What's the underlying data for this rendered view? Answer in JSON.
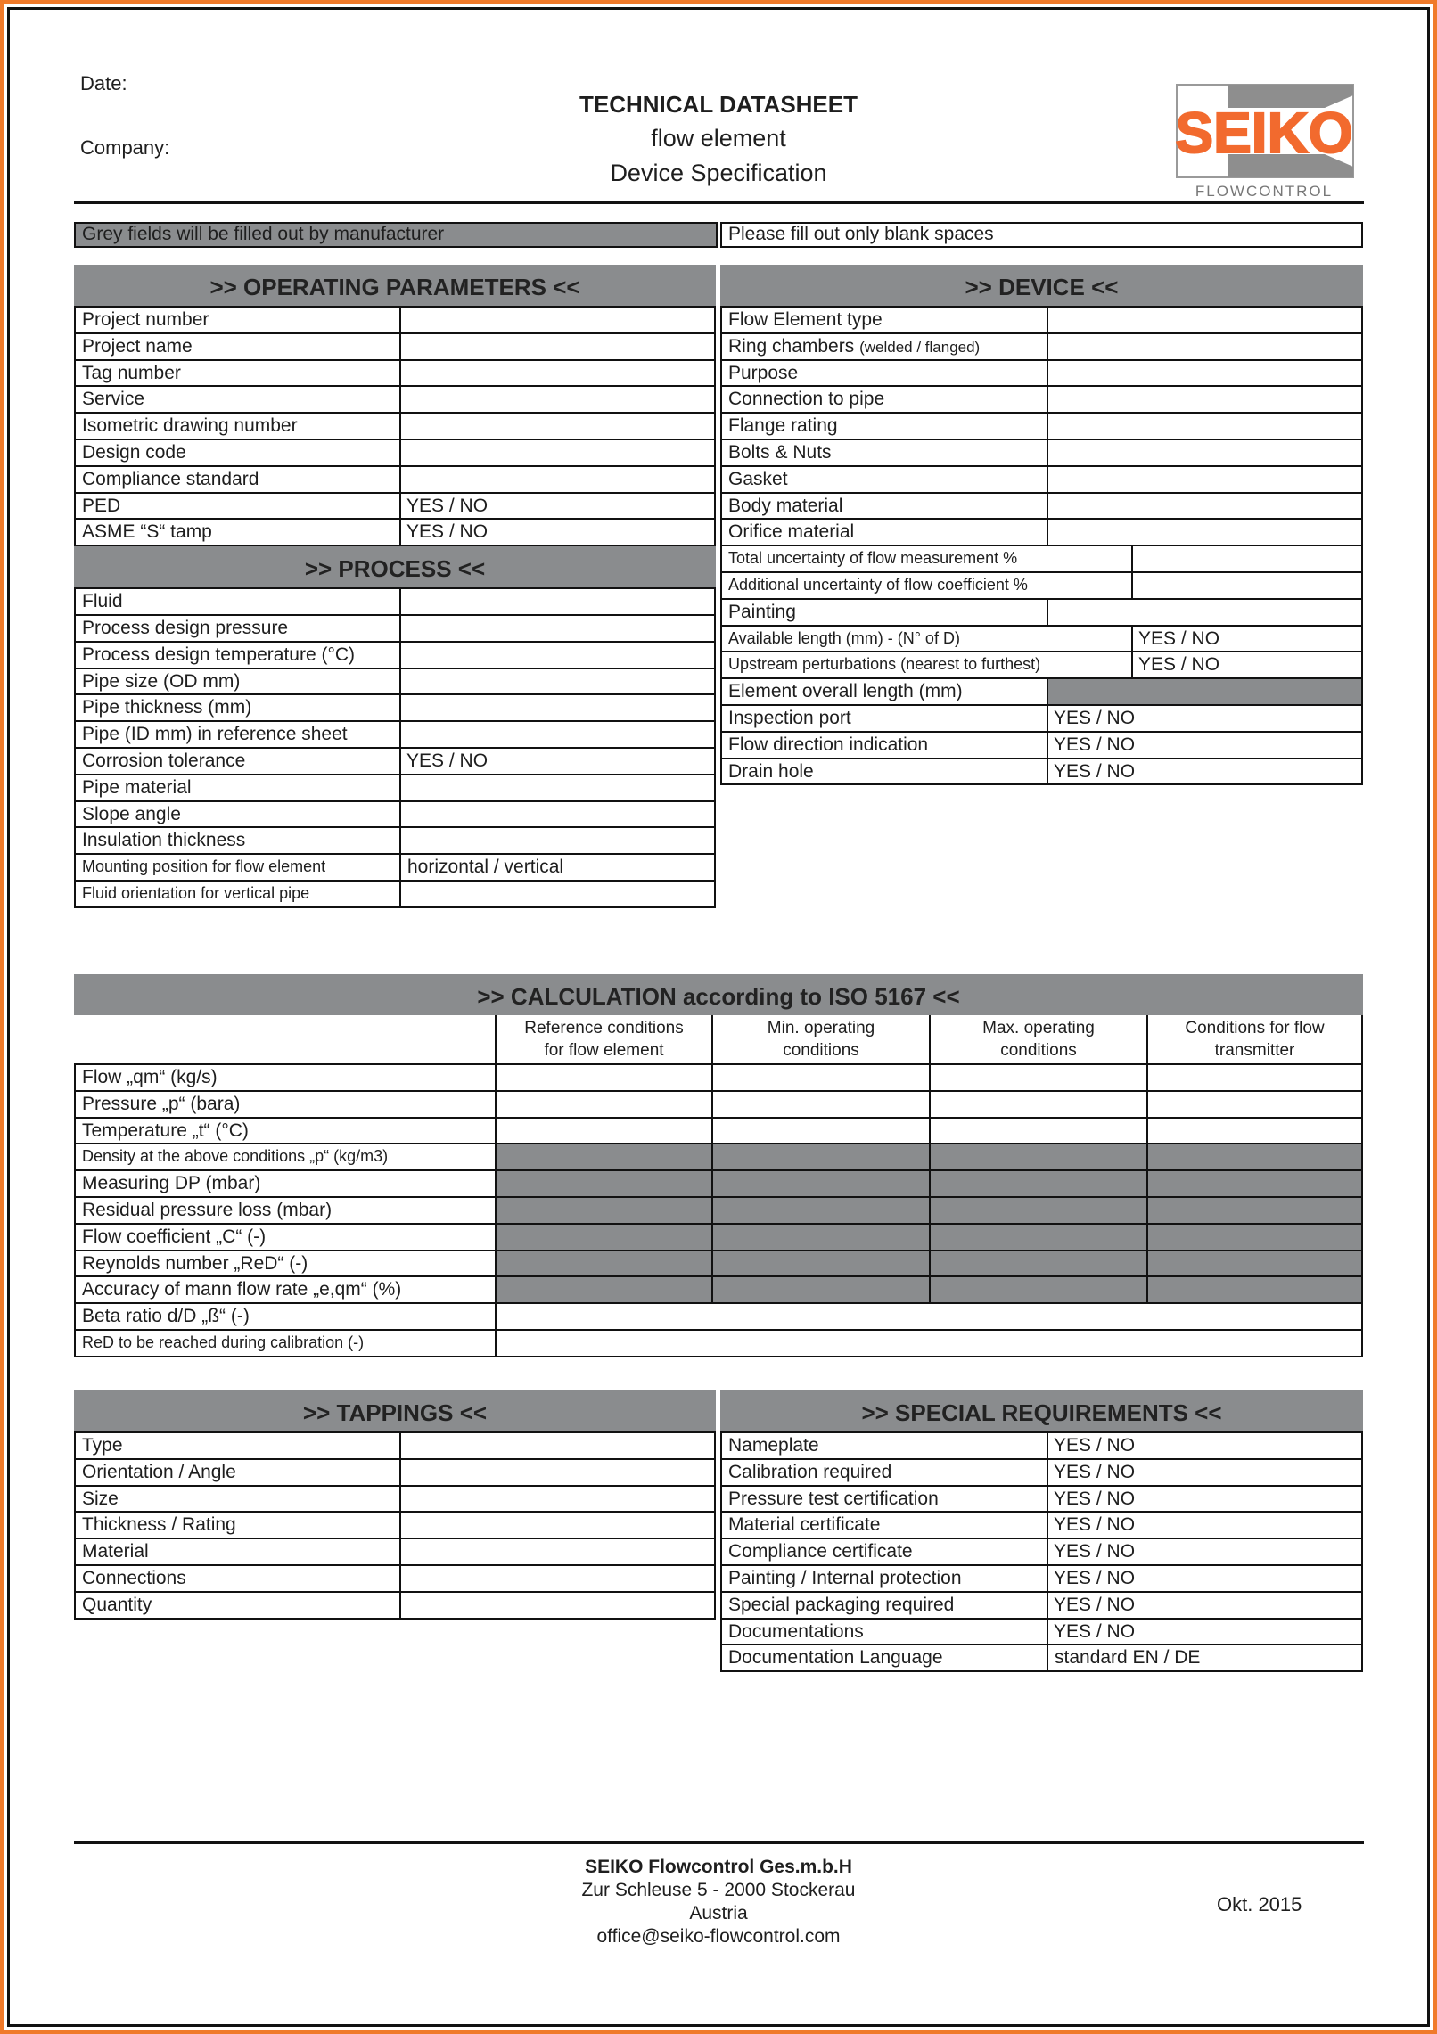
{
  "header": {
    "date_label": "Date:",
    "company_label": "Company:",
    "title": "TECHNICAL DATASHEET",
    "subtitle1": "flow element",
    "subtitle2": "Device Specification",
    "logo_text": "SEIKO",
    "logo_subtext": "FLOWCONTROL"
  },
  "colors": {
    "brand_orange": "#f26a2e",
    "grey_field": "#8a8c8e",
    "border_orange": "#f07a2a"
  },
  "notes": {
    "grey_note": "Grey fields will be filled out by manufacturer",
    "blank_note": "Please fill out only blank spaces"
  },
  "operating": {
    "title": ">> OPERATING PARAMETERS <<",
    "rows": [
      {
        "label": "Project number",
        "value": ""
      },
      {
        "label": "Project name",
        "value": ""
      },
      {
        "label": "Tag number",
        "value": ""
      },
      {
        "label": "Service",
        "value": ""
      },
      {
        "label": "Isometric drawing number",
        "value": ""
      },
      {
        "label": "Design code",
        "value": ""
      },
      {
        "label": "Compliance standard",
        "value": ""
      },
      {
        "label": "PED",
        "value": "YES / NO"
      },
      {
        "label": "ASME “S“ tamp",
        "value": "YES / NO"
      }
    ]
  },
  "process": {
    "title": ">> PROCESS <<",
    "rows": [
      {
        "label": "Fluid",
        "value": ""
      },
      {
        "label": "Process design pressure",
        "value": ""
      },
      {
        "label": "Process design temperature (°C)",
        "value": ""
      },
      {
        "label": "Pipe size (OD mm)",
        "value": ""
      },
      {
        "label": "Pipe thickness (mm)",
        "value": ""
      },
      {
        "label": "Pipe (ID mm) in reference sheet",
        "value": ""
      },
      {
        "label": "Corrosion tolerance",
        "value": "YES / NO"
      },
      {
        "label": "Pipe material",
        "value": ""
      },
      {
        "label": "Slope angle",
        "value": ""
      },
      {
        "label": "Insulation thickness",
        "value": ""
      },
      {
        "label": "Mounting position for flow element",
        "value": "horizontal / vertical"
      },
      {
        "label": "Fluid orientation for vertical pipe",
        "value": ""
      }
    ]
  },
  "device": {
    "title": ">> DEVICE <<",
    "rows": [
      {
        "label": "Flow Element type",
        "sub": "",
        "value": ""
      },
      {
        "label": "Ring chambers",
        "sub": "(welded / flanged)",
        "value": ""
      },
      {
        "label": "Purpose",
        "sub": "",
        "value": ""
      },
      {
        "label": "Connection to pipe",
        "sub": "",
        "value": ""
      },
      {
        "label": "Flange rating",
        "sub": "",
        "value": ""
      },
      {
        "label": "Bolts & Nuts",
        "sub": "",
        "value": ""
      },
      {
        "label": "Gasket",
        "sub": "",
        "value": ""
      },
      {
        "label": "Body material",
        "sub": "",
        "value": ""
      },
      {
        "label": "Orifice material",
        "sub": "",
        "value": ""
      },
      {
        "label": "Total uncertainty of flow measurement %",
        "sub": "",
        "value": ""
      },
      {
        "label": "Additional uncertainty of flow coefficient %",
        "sub": "",
        "value": ""
      },
      {
        "label": "Painting",
        "sub": "",
        "value": ""
      },
      {
        "label": "Available length (mm) - (N° of D)",
        "sub": "",
        "value": "YES / NO"
      },
      {
        "label": "Upstream perturbations (nearest to furthest)",
        "sub": "",
        "value": "YES / NO"
      },
      {
        "label": "Element overall length (mm)",
        "sub": "",
        "value": "",
        "grey": true
      },
      {
        "label": "Inspection port",
        "sub": "",
        "value": "YES / NO"
      },
      {
        "label": "Flow direction indication",
        "sub": "",
        "value": "YES / NO"
      },
      {
        "label": "Drain hole",
        "sub": "",
        "value": "YES / NO"
      }
    ]
  },
  "calculation": {
    "title": ">> CALCULATION according to ISO 5167 <<",
    "columns": [
      "Reference conditions for flow element",
      "Min. operating conditions",
      "Max. operating conditions",
      "Conditions for flow transmitter"
    ],
    "rows": [
      {
        "label": "Flow „qm“ (kg/s)",
        "grey": false,
        "merged": false
      },
      {
        "label": "Pressure „p“ (bara)",
        "grey": false,
        "merged": false
      },
      {
        "label": "Temperature „t“ (°C)",
        "grey": false,
        "merged": false
      },
      {
        "label": "Density at the above conditions „p“ (kg/m3)",
        "grey": true,
        "merged": false
      },
      {
        "label": "Measuring DP (mbar)",
        "grey": true,
        "merged": false
      },
      {
        "label": "Residual pressure loss (mbar)",
        "grey": true,
        "merged": false
      },
      {
        "label": "Flow coefficient „C“ (-)",
        "grey": true,
        "merged": false
      },
      {
        "label": "Reynolds number „ReD“ (-)",
        "grey": true,
        "merged": false
      },
      {
        "label": "Accuracy of mann flow rate „e,qm“ (%)",
        "grey": true,
        "merged": false
      },
      {
        "label": "Beta ratio d/D „ß“ (-)",
        "grey": false,
        "merged": true
      },
      {
        "label": "ReD to be reached during calibration (-)",
        "grey": false,
        "merged": true
      }
    ]
  },
  "tappings": {
    "title": ">> TAPPINGS <<",
    "rows": [
      {
        "label": "Type",
        "value": ""
      },
      {
        "label": "Orientation / Angle",
        "value": ""
      },
      {
        "label": "Size",
        "value": ""
      },
      {
        "label": "Thickness / Rating",
        "value": ""
      },
      {
        "label": "Material",
        "value": ""
      },
      {
        "label": "Connections",
        "value": ""
      },
      {
        "label": "Quantity",
        "value": ""
      }
    ]
  },
  "special": {
    "title": ">> SPECIAL REQUIREMENTS <<",
    "rows": [
      {
        "label": "Nameplate",
        "value": "YES / NO"
      },
      {
        "label": "Calibration required",
        "value": "YES / NO"
      },
      {
        "label": "Pressure test certification",
        "value": "YES / NO"
      },
      {
        "label": "Material certificate",
        "value": "YES / NO"
      },
      {
        "label": "Compliance certificate",
        "value": "YES / NO"
      },
      {
        "label": "Painting / Internal protection",
        "value": "YES / NO"
      },
      {
        "label": "Special packaging required",
        "value": "YES / NO"
      },
      {
        "label": "Documentations",
        "value": "YES / NO"
      },
      {
        "label": "Documentation Language",
        "value": "standard EN / DE"
      }
    ]
  },
  "footer": {
    "company": "SEIKO Flowcontrol Ges.m.b.H",
    "address1": "Zur Schleuse 5 - 2000 Stockerau",
    "address2": "Austria",
    "email": "office@seiko-flowcontrol.com",
    "date": "Okt. 2015"
  }
}
